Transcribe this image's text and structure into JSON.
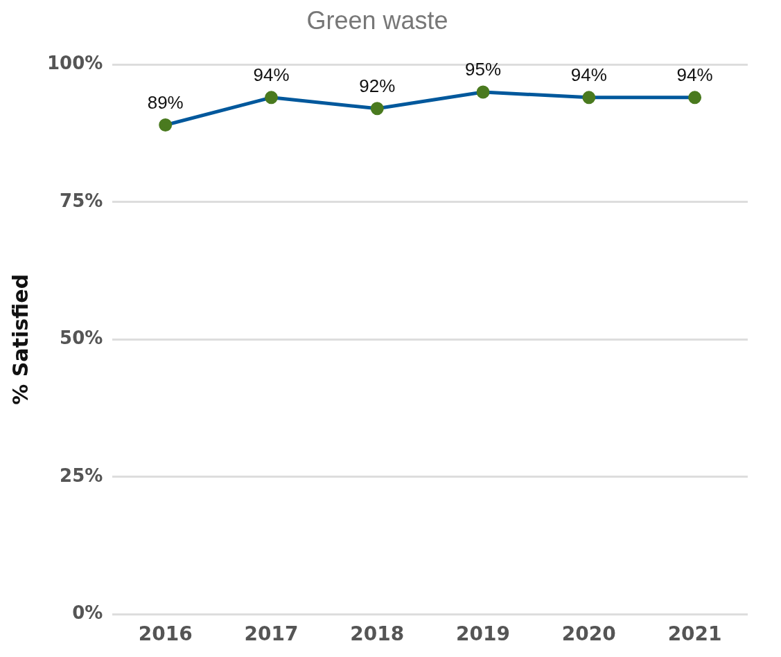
{
  "chart_data": {
    "type": "line",
    "title": "Green waste",
    "ylabel": "% Satisfied",
    "categories": [
      "2016",
      "2017",
      "2018",
      "2019",
      "2020",
      "2021"
    ],
    "series": [
      {
        "color": "#00589c",
        "colors": [
          "#4a7a1f",
          "#4a7a1f",
          "#4a7a1f",
          "#4a7a1f",
          "#4a7a1f",
          "#4a7a1f"
        ],
        "values": [
          89,
          94,
          92,
          95,
          94,
          94
        ],
        "value_labels": [
          "89%",
          "94%",
          "92%",
          "95%",
          "94%",
          "94%"
        ]
      }
    ],
    "ylim": [
      0,
      100
    ],
    "yticks": [
      {
        "value": 0,
        "label": "0%"
      },
      {
        "value": 25,
        "label": "25%"
      },
      {
        "value": 50,
        "label": "50%"
      },
      {
        "value": 75,
        "label": "75%"
      },
      {
        "value": 100,
        "label": "100%"
      }
    ],
    "grid": "y",
    "legend": false,
    "marker": "circle",
    "line_style": "solid"
  }
}
